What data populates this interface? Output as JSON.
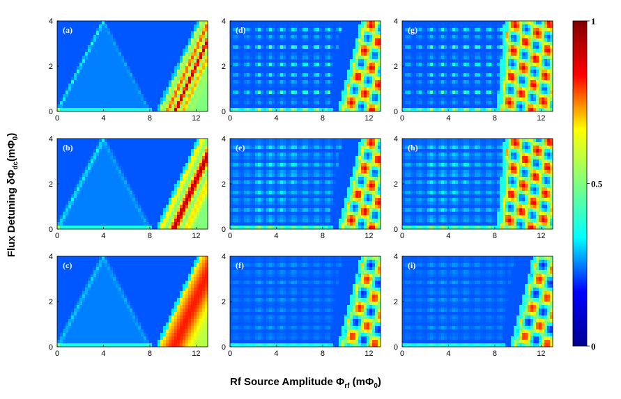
{
  "figure": {
    "ylabel": {
      "prefix": "Flux Detuning δΦ",
      "sub": "dc",
      "suffix": "(mΦ",
      "sub2": "0",
      "end": ")"
    },
    "xlabel": {
      "prefix": "Rf Source Amplitude Φ",
      "sub": "rf",
      "suffix": " (mΦ",
      "sub2": "0",
      "end": ")"
    }
  },
  "chart_data": [
    {
      "type": "heatmap",
      "panel_label": "(a)",
      "x_ticks": [
        0,
        4,
        8,
        12
      ],
      "y_ticks": [
        0,
        2,
        4
      ],
      "xlim": [
        0,
        13
      ],
      "ylim": [
        0,
        4
      ],
      "pattern": "a"
    },
    {
      "type": "heatmap",
      "panel_label": "(b)",
      "x_ticks": [
        0,
        4,
        8,
        12
      ],
      "y_ticks": [
        0,
        2,
        4
      ],
      "xlim": [
        0,
        13
      ],
      "ylim": [
        0,
        4
      ],
      "pattern": "b"
    },
    {
      "type": "heatmap",
      "panel_label": "(c)",
      "x_ticks": [
        0,
        4,
        8,
        12
      ],
      "y_ticks": [
        0,
        2,
        4
      ],
      "xlim": [
        0,
        13
      ],
      "ylim": [
        0,
        4
      ],
      "pattern": "c"
    },
    {
      "type": "heatmap",
      "panel_label": "(d)",
      "x_ticks": [
        0,
        4,
        8,
        12
      ],
      "y_ticks": [
        0,
        2,
        4
      ],
      "xlim": [
        0,
        13
      ],
      "ylim": [
        0,
        4
      ],
      "pattern": "d"
    },
    {
      "type": "heatmap",
      "panel_label": "(e)",
      "x_ticks": [
        0,
        4,
        8,
        12
      ],
      "y_ticks": [
        0,
        2,
        4
      ],
      "xlim": [
        0,
        13
      ],
      "ylim": [
        0,
        4
      ],
      "pattern": "e"
    },
    {
      "type": "heatmap",
      "panel_label": "(f)",
      "x_ticks": [
        0,
        4,
        8,
        12
      ],
      "y_ticks": [
        0,
        2,
        4
      ],
      "xlim": [
        0,
        13
      ],
      "ylim": [
        0,
        4
      ],
      "pattern": "f"
    },
    {
      "type": "heatmap",
      "panel_label": "(g)",
      "x_ticks": [
        0,
        4,
        8,
        12
      ],
      "y_ticks": [
        0,
        2,
        4
      ],
      "xlim": [
        0,
        13
      ],
      "ylim": [
        0,
        4
      ],
      "pattern": "g"
    },
    {
      "type": "heatmap",
      "panel_label": "(h)",
      "x_ticks": [
        0,
        4,
        8,
        12
      ],
      "y_ticks": [
        0,
        2,
        4
      ],
      "xlim": [
        0,
        13
      ],
      "ylim": [
        0,
        4
      ],
      "pattern": "h"
    },
    {
      "type": "heatmap",
      "panel_label": "(i)",
      "x_ticks": [
        0,
        4,
        8,
        12
      ],
      "y_ticks": [
        0,
        2,
        4
      ],
      "xlim": [
        0,
        13
      ],
      "ylim": [
        0,
        4
      ],
      "pattern": "i"
    }
  ],
  "colorbar": {
    "ticks": [
      "0",
      "0.5",
      "1"
    ],
    "tick_values": [
      0,
      0.5,
      1
    ],
    "range": [
      0,
      1
    ],
    "colormap": "jet",
    "colors": [
      "#00008f",
      "#0000ff",
      "#00ffff",
      "#7fff7f",
      "#ffff00",
      "#ff0000",
      "#800000"
    ]
  }
}
